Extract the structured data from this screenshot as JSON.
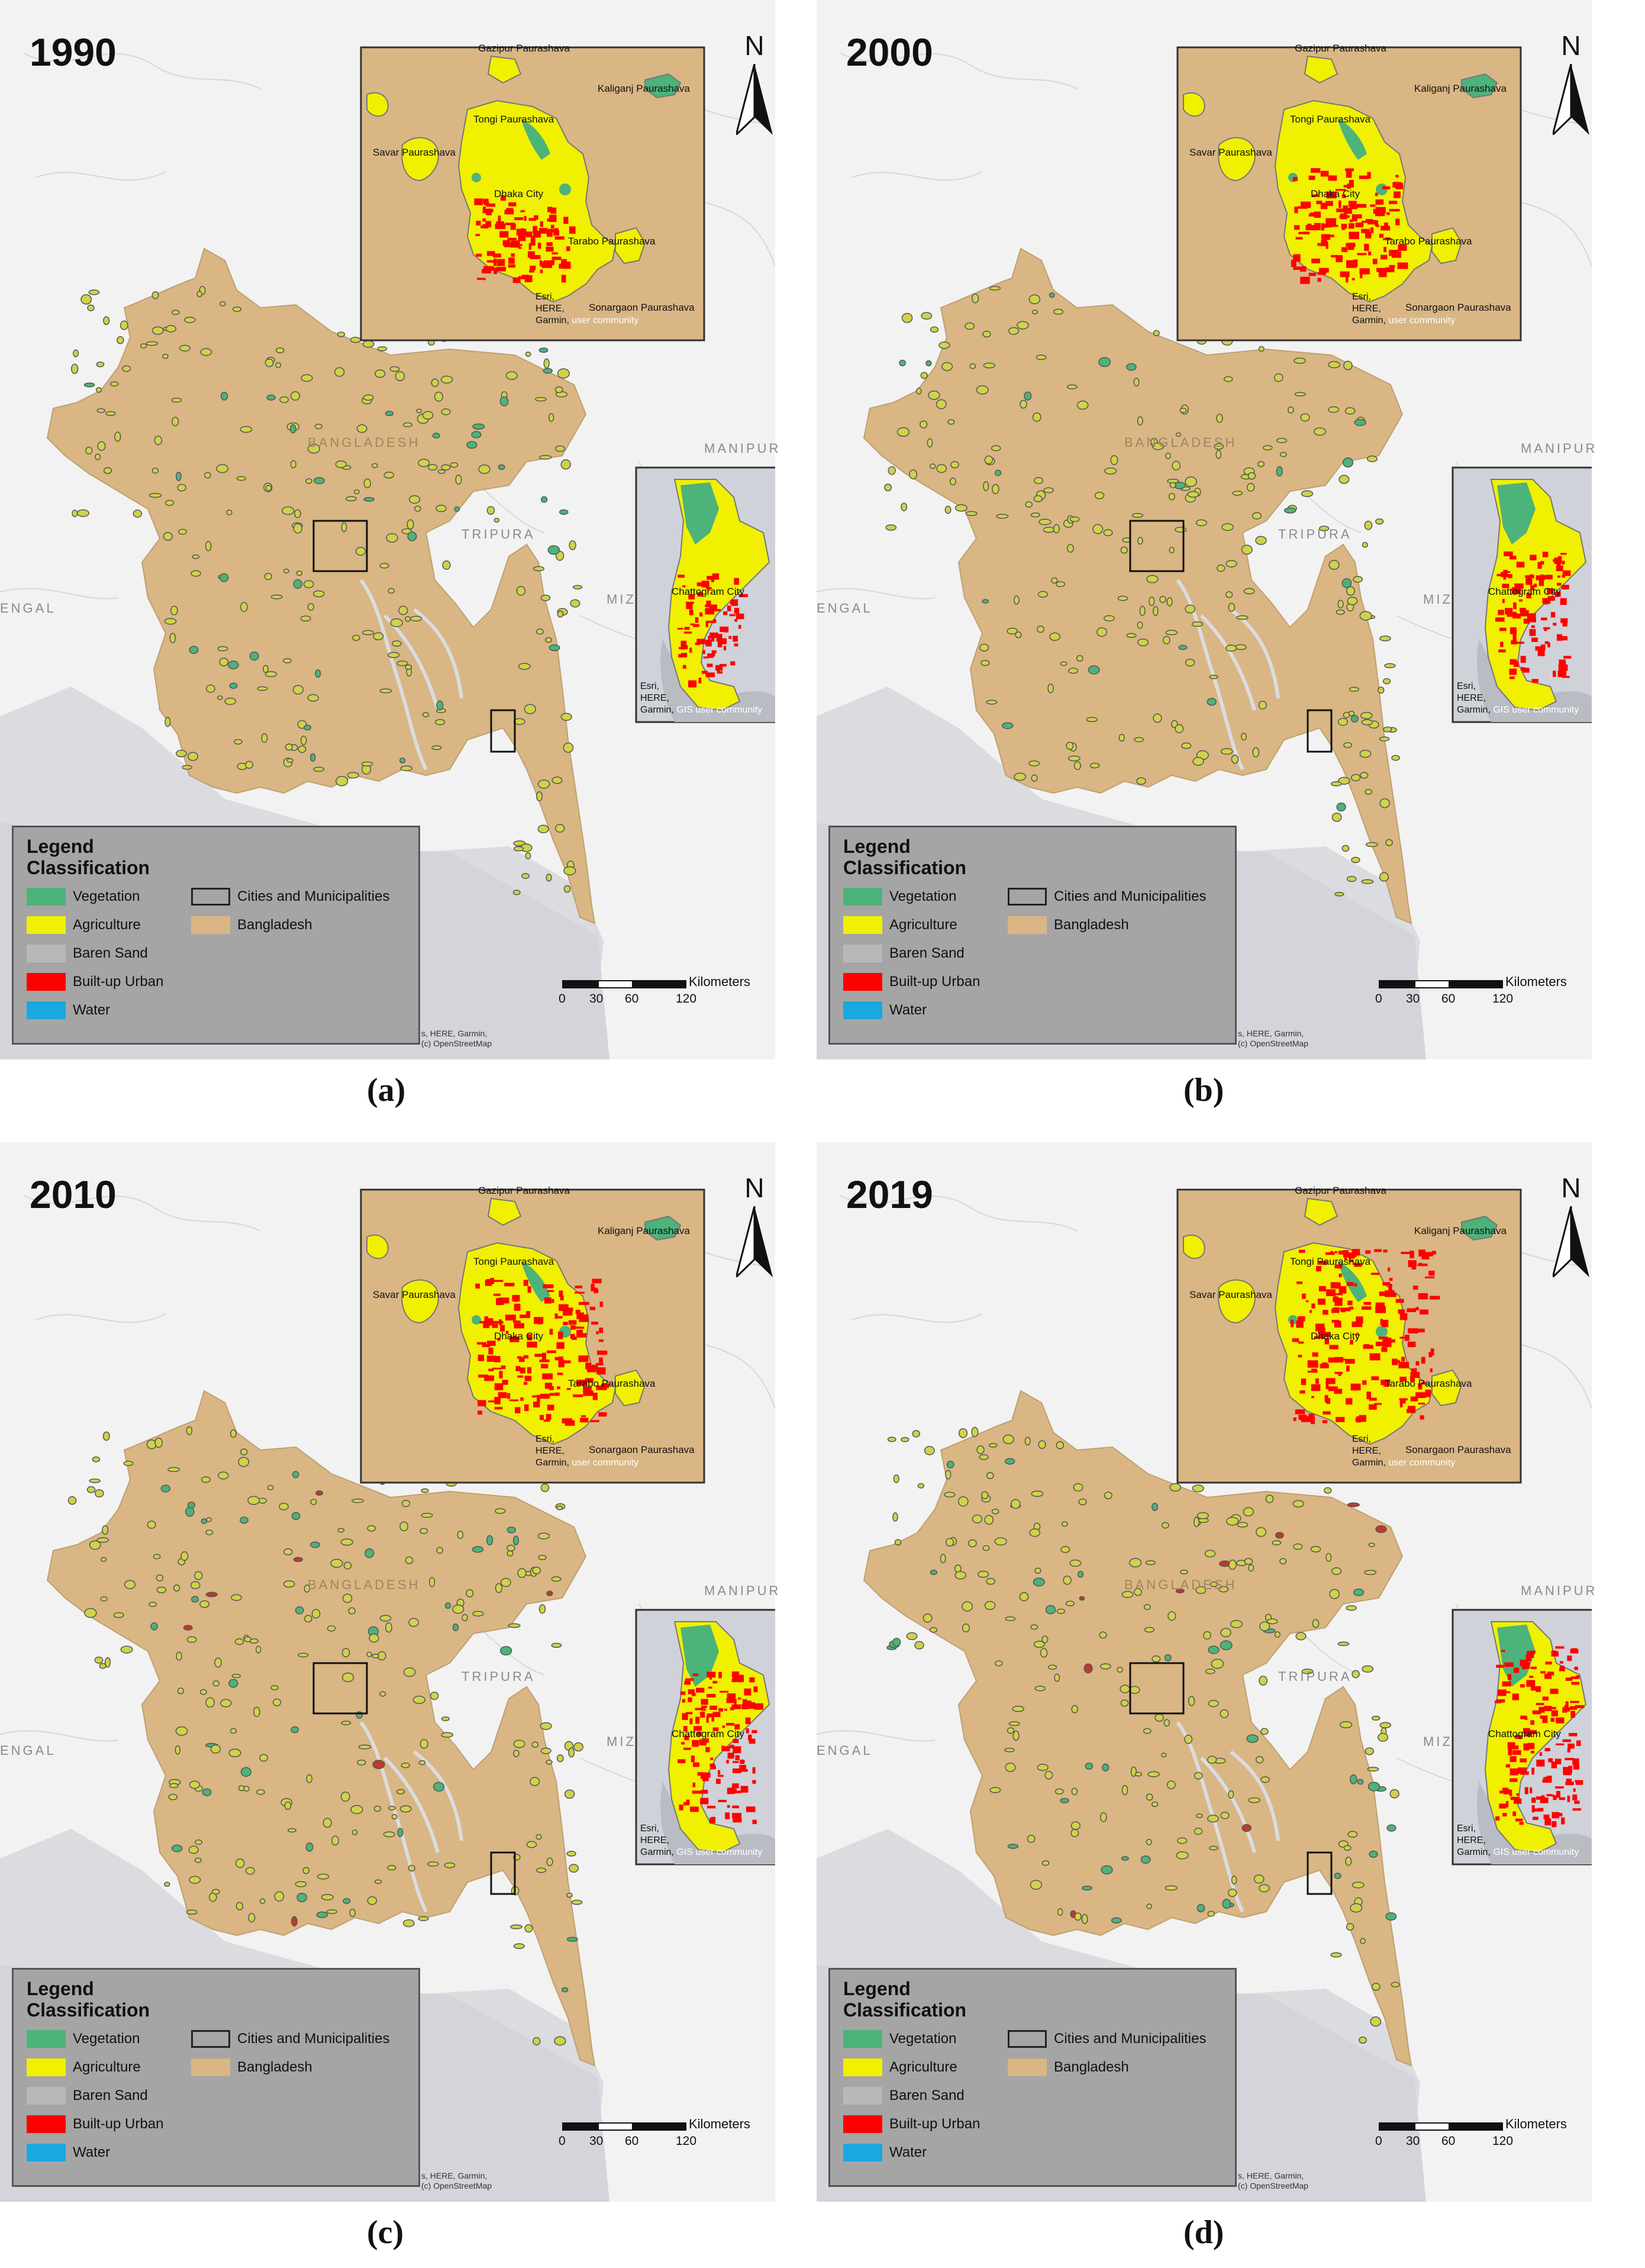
{
  "panels": [
    {
      "year": "1990",
      "caption": "(a)"
    },
    {
      "year": "2000",
      "caption": "(b)"
    },
    {
      "year": "2010",
      "caption": "(c)"
    },
    {
      "year": "2019",
      "caption": "(d)"
    }
  ],
  "north_label": "N",
  "dhaka_inset": {
    "labels": {
      "gazipur": "Gazipur Paurashava",
      "kaliganj": "Kaliganj Paurashava",
      "tongi": "Tongi Paurashava",
      "savar": "Savar Paurashava",
      "dhaka": "Dhaka City",
      "tarabo": "Tarabo Paurashava",
      "sonargaon": "Sonargaon Paurashava"
    },
    "credit": {
      "line1": "Esri,",
      "line2": "HERE,",
      "line3": "Garmin,",
      "community": "user community"
    }
  },
  "ctg_inset": {
    "label": "Chattogram City",
    "credit": {
      "line1": "Esri,",
      "line2": "HERE,",
      "line3": "Garmin,",
      "community": "GIS user community"
    }
  },
  "context_labels": {
    "manipur": "MANIPUR",
    "tripura": "TRIPURA",
    "mizoram": "MIZ",
    "bengal": "ENGAL",
    "bangladesh": "BANGLADESH"
  },
  "legend": {
    "title": "Legend",
    "subtitle": "Classification",
    "items": [
      {
        "label": "Vegetation",
        "color": "#4cb37a"
      },
      {
        "label": "Agriculture",
        "color": "#f0f000"
      },
      {
        "label": "Baren Sand",
        "color": "#b8b8b8"
      },
      {
        "label": "Built-up Urban",
        "color": "#ff0000"
      },
      {
        "label": "Water",
        "color": "#19a8e0"
      }
    ],
    "outline_item": {
      "label": "Cities and Municipalities"
    },
    "country_item": {
      "label": "Bangladesh",
      "color": "#d9b684"
    }
  },
  "scale": {
    "unit": "Kilometers",
    "ticks": [
      "0",
      "30",
      "60",
      "120"
    ]
  },
  "attribution": {
    "line1": "s, HERE, Garmin,",
    "line2": "(c) OpenStreetMap"
  },
  "colors": {
    "land": "#d9b684",
    "sea": "#dadce0",
    "background": "#f2f2f2",
    "urban": "#ff0000",
    "agriculture": "#f0f000",
    "vegetation": "#4cb37a"
  }
}
